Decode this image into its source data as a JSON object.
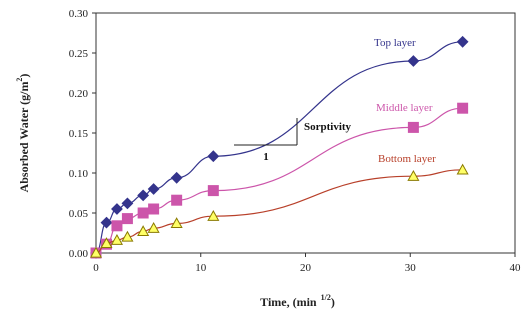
{
  "chart_data": {
    "type": "line",
    "title": "",
    "xlabel": "Time, (min 1/2)",
    "xlabel_main": "Time, (min",
    "xlabel_exp": "1/2",
    "xlabel_close": ")",
    "ylabel": "Absorbed Water (g/m2)",
    "ylabel_main": "Absorbed Water (g/m",
    "ylabel_exp": "2",
    "ylabel_close": ")",
    "xlim": [
      0,
      40
    ],
    "ylim": [
      0,
      0.3
    ],
    "xticks": [
      0,
      10,
      20,
      30,
      40
    ],
    "yticks": [
      0.0,
      0.05,
      0.1,
      0.15,
      0.2,
      0.25,
      0.3
    ],
    "xtick_labels": [
      "0",
      "10",
      "20",
      "30",
      "40"
    ],
    "ytick_labels": [
      "0.00",
      "0.05",
      "0.10",
      "0.15",
      "0.20",
      "0.25",
      "0.30"
    ],
    "grid": false,
    "annotations": {
      "sorptivity_label": "Sorptivity",
      "unit_label": "1"
    },
    "series": [
      {
        "name": "Top layer",
        "label": "Top layer",
        "color": "#34348c",
        "marker": "diamond",
        "x": [
          0.0,
          1.0,
          2.0,
          3.0,
          4.5,
          5.5,
          7.7,
          11.2,
          30.3,
          35.0
        ],
        "y": [
          0.0,
          0.038,
          0.055,
          0.062,
          0.072,
          0.08,
          0.094,
          0.121,
          0.24,
          0.264
        ]
      },
      {
        "name": "Middle layer",
        "label": "Middle layer",
        "color": "#cc55aa",
        "marker": "square",
        "x": [
          0.0,
          1.0,
          2.0,
          3.0,
          4.5,
          5.5,
          7.7,
          11.2,
          30.3,
          35.0
        ],
        "y": [
          0.0,
          0.011,
          0.034,
          0.043,
          0.05,
          0.055,
          0.066,
          0.078,
          0.157,
          0.181
        ]
      },
      {
        "name": "Bottom layer",
        "label": "Bottom layer",
        "color": "#b8402a",
        "marker_fill": "#ffff66",
        "marker_stroke": "#8a7a00",
        "marker": "triangle",
        "x": [
          0.0,
          1.0,
          2.0,
          3.0,
          4.5,
          5.5,
          7.7,
          11.2,
          30.3,
          35.0
        ],
        "y": [
          0.0,
          0.012,
          0.016,
          0.02,
          0.027,
          0.031,
          0.037,
          0.046,
          0.096,
          0.104
        ]
      }
    ]
  }
}
